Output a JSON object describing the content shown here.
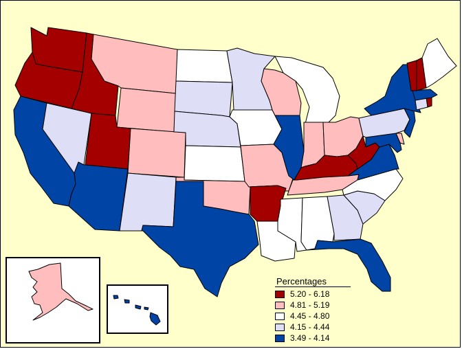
{
  "legend": {
    "title": "Percentages",
    "classes": [
      {
        "label": "5.20 - 6.18",
        "color": "#a50000"
      },
      {
        "label": "4.81 - 5.19",
        "color": "#ffbdbd"
      },
      {
        "label": "4.45 - 4.80",
        "color": "#ffffff"
      },
      {
        "label": "4.15 - 4.44",
        "color": "#dedef7"
      },
      {
        "label": "3.49 - 4.14",
        "color": "#0045a5"
      }
    ]
  },
  "background_color": "#ffffcc",
  "states": [
    {
      "abbr": "WA",
      "class": 0
    },
    {
      "abbr": "OR",
      "class": 0
    },
    {
      "abbr": "ID",
      "class": 0
    },
    {
      "abbr": "UT",
      "class": 0
    },
    {
      "abbr": "AR",
      "class": 0
    },
    {
      "abbr": "KY",
      "class": 0
    },
    {
      "abbr": "WV",
      "class": 0
    },
    {
      "abbr": "VT",
      "class": 0
    },
    {
      "abbr": "NH",
      "class": 0
    },
    {
      "abbr": "RI",
      "class": 0
    },
    {
      "abbr": "MT",
      "class": 1
    },
    {
      "abbr": "WY",
      "class": 1
    },
    {
      "abbr": "CO",
      "class": 1
    },
    {
      "abbr": "WI",
      "class": 1
    },
    {
      "abbr": "MO",
      "class": 1
    },
    {
      "abbr": "OK",
      "class": 1
    },
    {
      "abbr": "IN",
      "class": 1
    },
    {
      "abbr": "OH",
      "class": 1
    },
    {
      "abbr": "TN",
      "class": 1
    },
    {
      "abbr": "DE",
      "class": 1
    },
    {
      "abbr": "AK",
      "class": 1
    },
    {
      "abbr": "ND",
      "class": 2
    },
    {
      "abbr": "IA",
      "class": 2
    },
    {
      "abbr": "KS",
      "class": 2
    },
    {
      "abbr": "LA",
      "class": 2
    },
    {
      "abbr": "MS",
      "class": 2
    },
    {
      "abbr": "AL",
      "class": 2
    },
    {
      "abbr": "NC",
      "class": 2
    },
    {
      "abbr": "ME",
      "class": 2
    },
    {
      "abbr": "MI",
      "class": 2
    },
    {
      "abbr": "NV",
      "class": 3
    },
    {
      "abbr": "NM",
      "class": 3
    },
    {
      "abbr": "SD",
      "class": 3
    },
    {
      "abbr": "NE",
      "class": 3
    },
    {
      "abbr": "MN",
      "class": 3
    },
    {
      "abbr": "GA",
      "class": 3
    },
    {
      "abbr": "SC",
      "class": 3
    },
    {
      "abbr": "PA",
      "class": 3
    },
    {
      "abbr": "CT",
      "class": 3
    },
    {
      "abbr": "CA",
      "class": 4
    },
    {
      "abbr": "AZ",
      "class": 4
    },
    {
      "abbr": "TX",
      "class": 4
    },
    {
      "abbr": "IL",
      "class": 4
    },
    {
      "abbr": "FL",
      "class": 4
    },
    {
      "abbr": "VA",
      "class": 4
    },
    {
      "abbr": "MD",
      "class": 4
    },
    {
      "abbr": "NY",
      "class": 4
    },
    {
      "abbr": "NJ",
      "class": 4
    },
    {
      "abbr": "MA",
      "class": 4
    },
    {
      "abbr": "HI",
      "class": 4
    }
  ]
}
